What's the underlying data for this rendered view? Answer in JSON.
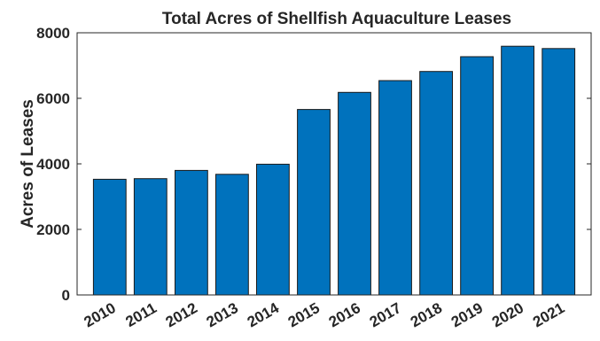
{
  "chart_data": {
    "type": "bar",
    "title": "Total Acres of Shellfish Aquaculture Leases",
    "xlabel": "",
    "ylabel": "Acres of Leases",
    "categories": [
      "2010",
      "2011",
      "2012",
      "2013",
      "2014",
      "2015",
      "2016",
      "2017",
      "2018",
      "2019",
      "2020",
      "2021"
    ],
    "values": [
      3530,
      3550,
      3800,
      3680,
      3990,
      5660,
      6180,
      6540,
      6820,
      7270,
      7590,
      7520
    ],
    "ylim": [
      0,
      8000
    ],
    "yticks": [
      0,
      2000,
      4000,
      6000,
      8000
    ],
    "grid": false,
    "legend": "none",
    "bar_color": "#0072BD"
  }
}
